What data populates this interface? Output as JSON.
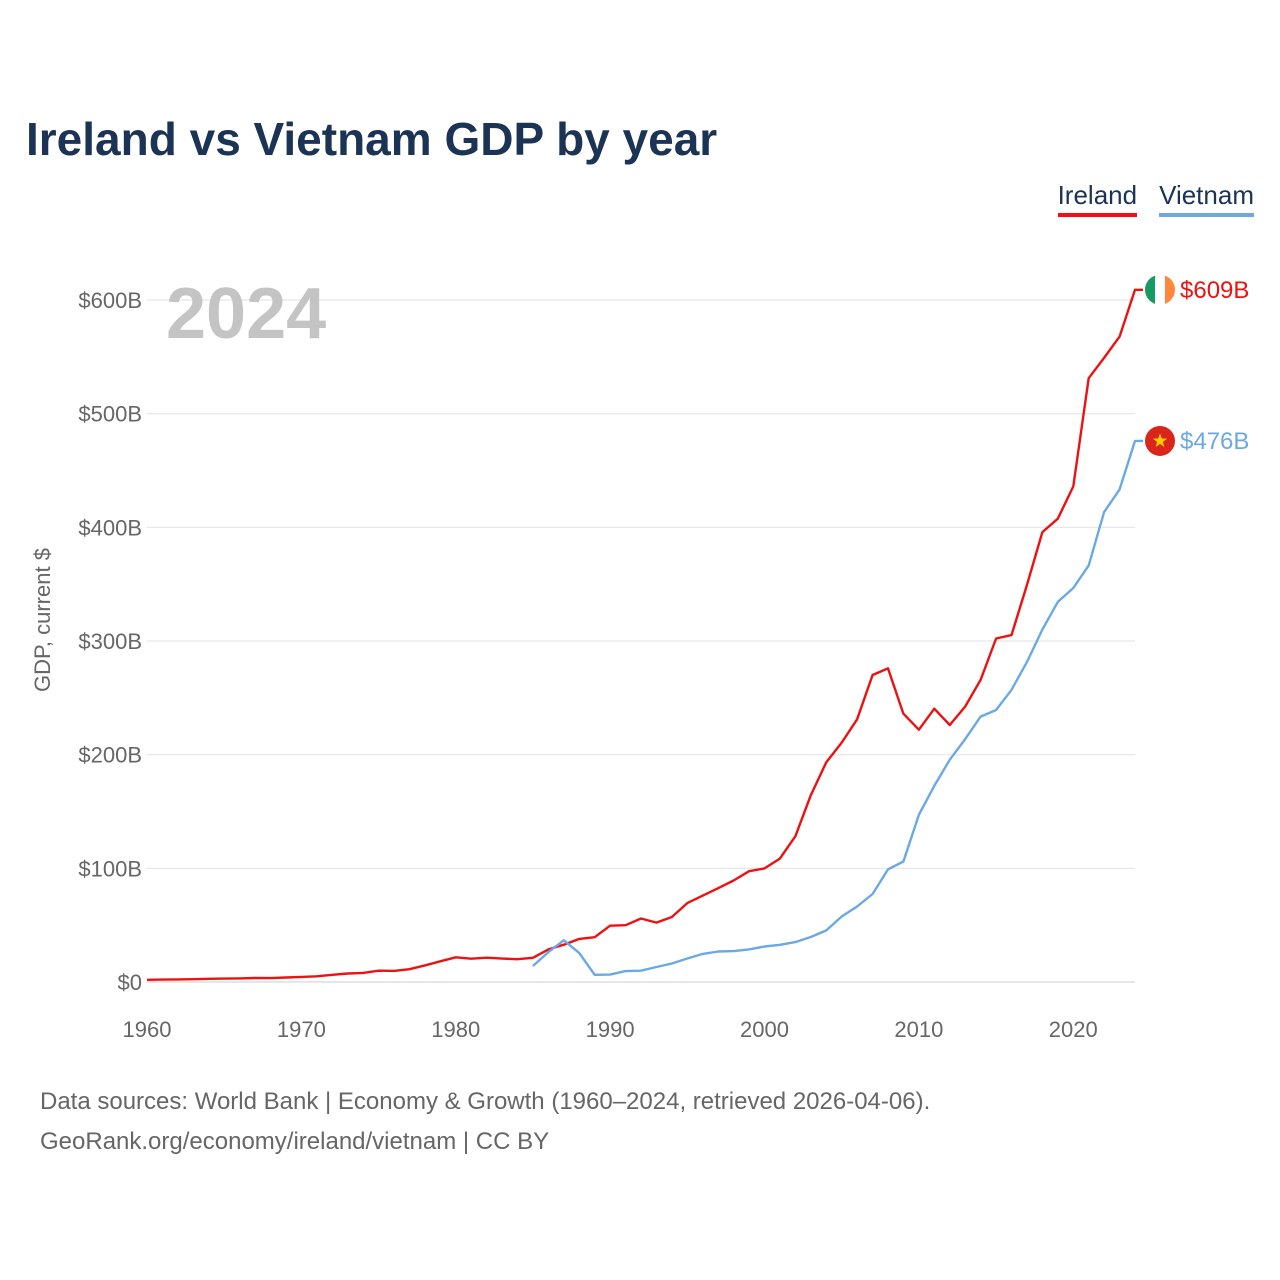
{
  "title": "Ireland vs Vietnam GDP by year",
  "legend": {
    "ireland": "Ireland",
    "vietnam": "Vietnam"
  },
  "source": {
    "line1": "Data sources: World Bank | Economy & Growth (1960–2024, retrieved 2026-04-06).",
    "line2": "GeoRank.org/economy/ireland/vietnam | CC BY"
  },
  "chart_data": {
    "type": "line",
    "title": "Ireland vs Vietnam GDP by year",
    "ylabel": "GDP, current $",
    "xlabel": "",
    "current_year_label": "2024",
    "xlim": [
      1960,
      2024
    ],
    "ylim": [
      0,
      600
    ],
    "x_ticks": [
      1960,
      1970,
      1980,
      1990,
      2000,
      2010,
      2020
    ],
    "y_ticks": [
      {
        "value": 0,
        "label": "$0"
      },
      {
        "value": 100,
        "label": "$100B"
      },
      {
        "value": 200,
        "label": "$200B"
      },
      {
        "value": 300,
        "label": "$300B"
      },
      {
        "value": 400,
        "label": "$400B"
      },
      {
        "value": 500,
        "label": "$500B"
      },
      {
        "value": 600,
        "label": "$600B"
      }
    ],
    "series": [
      {
        "name": "Ireland",
        "color": "#ee1111",
        "end_label": "$609B",
        "flag": "ireland-flag",
        "x": [
          1960,
          1961,
          1962,
          1963,
          1964,
          1965,
          1966,
          1967,
          1968,
          1969,
          1970,
          1971,
          1972,
          1973,
          1974,
          1975,
          1976,
          1977,
          1978,
          1979,
          1980,
          1981,
          1982,
          1983,
          1984,
          1985,
          1986,
          1987,
          1988,
          1989,
          1990,
          1991,
          1992,
          1993,
          1994,
          1995,
          1996,
          1997,
          1998,
          1999,
          2000,
          2001,
          2002,
          2003,
          2004,
          2005,
          2006,
          2007,
          2008,
          2009,
          2010,
          2011,
          2012,
          2013,
          2014,
          2015,
          2016,
          2017,
          2018,
          2019,
          2020,
          2021,
          2022,
          2023,
          2024
        ],
        "values": [
          1.9,
          2.1,
          2.3,
          2.5,
          2.8,
          3.0,
          3.2,
          3.5,
          3.4,
          4.0,
          4.5,
          5.0,
          6.3,
          7.5,
          8.0,
          9.9,
          9.8,
          11.3,
          14.6,
          18.2,
          21.7,
          20.5,
          21.4,
          20.6,
          20.1,
          21.3,
          28.7,
          32.8,
          37.9,
          39.4,
          49.5,
          50.0,
          55.9,
          52.3,
          57.2,
          69.4,
          76.0,
          82.5,
          89.3,
          97.5,
          99.9,
          108.6,
          128.3,
          164.3,
          193.4,
          210.6,
          231.1,
          270.1,
          275.9,
          236.0,
          222.0,
          240.4,
          226.1,
          242.4,
          265.8,
          302.2,
          305.2,
          349.2,
          395.8,
          407.6,
          436.0,
          531.2,
          549.1,
          567.8,
          609.0
        ]
      },
      {
        "name": "Vietnam",
        "color": "#6aa9e6",
        "end_label": "$476B",
        "flag": "vietnam-flag",
        "x": [
          1985,
          1986,
          1987,
          1988,
          1989,
          1990,
          1991,
          1992,
          1993,
          1994,
          1995,
          1996,
          1997,
          1998,
          1999,
          2000,
          2001,
          2002,
          2003,
          2004,
          2005,
          2006,
          2007,
          2008,
          2009,
          2010,
          2011,
          2012,
          2013,
          2014,
          2015,
          2016,
          2017,
          2018,
          2019,
          2020,
          2021,
          2022,
          2023,
          2024
        ],
        "values": [
          14.1,
          26.3,
          36.7,
          25.4,
          6.3,
          6.5,
          9.6,
          9.9,
          13.2,
          16.3,
          20.7,
          24.7,
          26.8,
          27.2,
          28.7,
          31.2,
          32.7,
          35.1,
          39.6,
          45.4,
          57.6,
          66.4,
          77.4,
          99.1,
          106.0,
          147.2,
          172.6,
          195.6,
          213.7,
          233.5,
          239.3,
          257.1,
          281.4,
          310.1,
          334.4,
          346.6,
          366.5,
          413.4,
          433.4,
          476.0
        ]
      }
    ]
  }
}
